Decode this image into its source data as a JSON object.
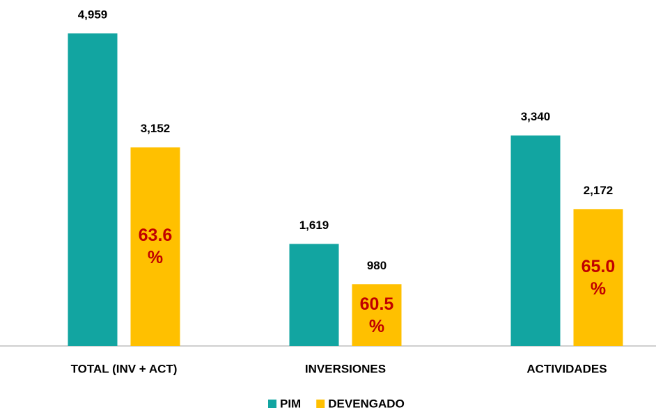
{
  "chart_data": {
    "type": "bar",
    "categories": [
      "TOTAL (INV + ACT)",
      "INVERSIONES",
      "ACTIVIDADES"
    ],
    "series": [
      {
        "name": "PIM",
        "color": "#12a5a1",
        "values": [
          4959,
          1619,
          3340
        ],
        "value_labels": [
          "4,959",
          "1,619",
          "3,340"
        ]
      },
      {
        "name": "DEVENGADO",
        "color": "#ffc000",
        "values": [
          3152,
          980,
          2172
        ],
        "value_labels": [
          "3,152",
          "980",
          "2,172"
        ]
      }
    ],
    "annotations": [
      "63.6 %",
      "60.5 %",
      "65.0 %"
    ],
    "annotation_color": "#c00000"
  }
}
